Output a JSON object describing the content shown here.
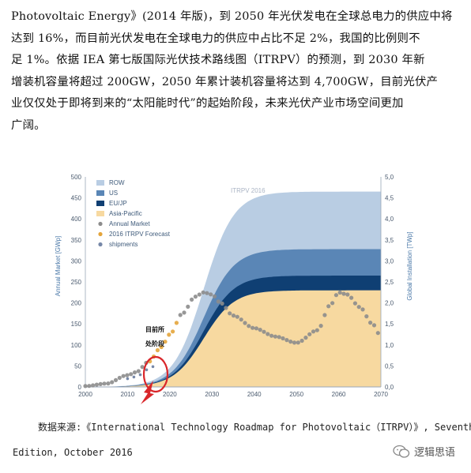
{
  "paragraph": {
    "lines": [
      "Photovoltaic Energy》(2014 年版)，到 2050 年光伏发电在全球总电力的供应中将",
      "达到 16%，而目前光伏发电在全球电力的供应中占比不足 2%，我国的比例则不",
      "足 1%。依据 IEA 第七版国际光伏技术路线图（ITRPV）的预测，到 2030 年新",
      "增装机容量将超过 200GW，2050 年累计装机容量将达到 4,700GW，目前光伏产",
      "业仅仅处于即将到来的“太阳能时代”的起始阶段，未来光伏产业市场空间更加",
      "广阔。"
    ]
  },
  "chart_data": {
    "type": "area",
    "watermark": "ITRPV 2016",
    "ylabel_left": "Annual Market [GWp]",
    "ylabel_right": "Global Installation [TWp]",
    "x_ticks": [
      "2000",
      "2010",
      "2020",
      "2030",
      "2040",
      "2050",
      "2060",
      "2070"
    ],
    "y_left_ticks": [
      "0",
      "50",
      "100",
      "150",
      "200",
      "250",
      "300",
      "350",
      "400",
      "450",
      "500"
    ],
    "y_right_ticks": [
      "0,0",
      "0,5",
      "1,0",
      "1,5",
      "2,0",
      "2,5",
      "3,0",
      "3,5",
      "4,0",
      "4,5",
      "5,0"
    ],
    "xlim": [
      2000,
      2070
    ],
    "ylim_left": [
      0,
      500
    ],
    "ylim_right": [
      0,
      5
    ],
    "legend": [
      "ROW",
      "US",
      "EU/JP",
      "Asia-Pacific",
      "Annual Market",
      "2016 ITRPV Forecast",
      "shipments"
    ],
    "colors": {
      "ROW": "#b9cde3",
      "US": "#5a86b6",
      "EU/JP": "#0f3f73",
      "Asia-Pacific": "#f7d9a0",
      "Annual Market": "#8c8c8c",
      "2016 ITRPV Forecast": "#e4a53c",
      "shipments": "#7788a8",
      "highlight": "#d9262a"
    },
    "stacked_series_top_twp": [
      {
        "name": "Asia-Pacific",
        "plateau": 2.3
      },
      {
        "name": "EU/JP",
        "plateau": 2.65
      },
      {
        "name": "US",
        "plateau": 3.28
      },
      {
        "name": "ROW",
        "plateau": 4.65
      }
    ],
    "annual_market": {
      "x": [
        2000,
        2005,
        2010,
        2012,
        2015,
        2018,
        2020,
        2023,
        2026,
        2028,
        2030,
        2032,
        2035,
        2040,
        2045,
        2050,
        2055,
        2058,
        2060,
        2062,
        2065,
        2068,
        2070
      ],
      "y": [
        2,
        8,
        28,
        35,
        60,
        95,
        125,
        175,
        215,
        225,
        220,
        200,
        170,
        140,
        120,
        105,
        135,
        195,
        225,
        220,
        190,
        150,
        120
      ]
    },
    "annotation": "目前所\n处阶段",
    "annotation_lines": [
      "目前所",
      "处阶段"
    ]
  },
  "source": {
    "line1": "数据来源:《International Technology Roadmap for Photovoltaic（ITRPV）》, Seventh",
    "line2": "Edition, October 2016"
  },
  "watermark": {
    "label": "逻辑思语",
    "icon": "wechat-icon"
  }
}
